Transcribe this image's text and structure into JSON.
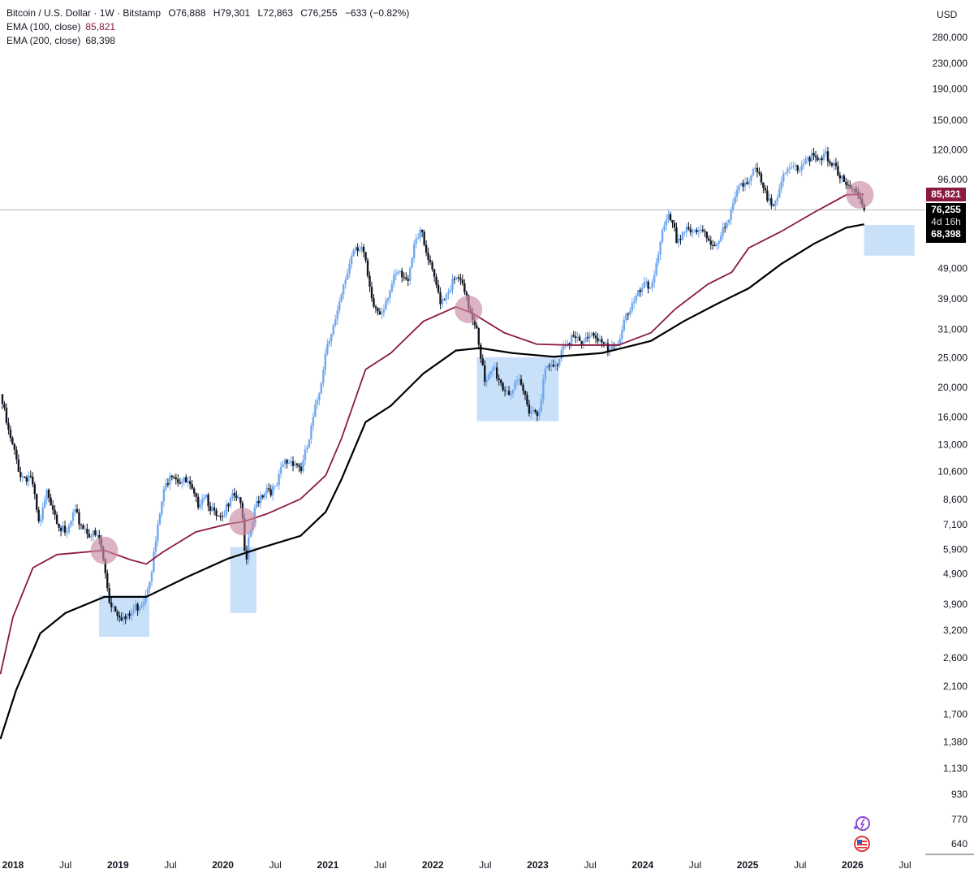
{
  "header": {
    "symbol": "Bitcoin / U.S. Dollar · 1W · Bitstamp",
    "open": "O76,888",
    "high": "H79,301",
    "low": "L72,863",
    "close": "C76,255",
    "change": "−633 (−0.82%)",
    "ema100_label": "EMA (100, close)",
    "ema100_value": "85,821",
    "ema200_label": "EMA (200, close)",
    "ema200_value": "68,398"
  },
  "axis": {
    "currency": "USD",
    "price_tag_ema100": "85,821",
    "price_tag_last": "76,255",
    "countdown": "4d 16h",
    "price_tag_ema200": "68,398"
  },
  "icons": [
    "ai-assistant-icon",
    "us-flag-icon"
  ],
  "colors": {
    "up": "#6fa8f0",
    "down": "#131722",
    "ema100": "#8b1a3e",
    "ema200": "#000000",
    "highlight_circle": "#c98aa3",
    "highlight_box": "#bcd8f7"
  },
  "chart_data": {
    "type": "candlestick",
    "title": "Bitcoin / U.S. Dollar · 1W · Bitstamp",
    "scale": "log",
    "ylim": [
      600,
      300000
    ],
    "xlim": [
      2017.88,
      2026.72
    ],
    "y_ticks": [
      280000,
      230000,
      190000,
      150000,
      120000,
      96000,
      49000,
      39000,
      31000,
      25000,
      20000,
      16000,
      13000,
      10600,
      8600,
      7100,
      5900,
      4900,
      3900,
      3200,
      2600,
      2100,
      1700,
      1380,
      1130,
      930,
      770,
      640
    ],
    "y_tick_labels": [
      "280,000",
      "230,000",
      "190,000",
      "150,000",
      "120,000",
      "96,000",
      "49,000",
      "39,000",
      "31,000",
      "25,000",
      "20,000",
      "16,000",
      "13,000",
      "10,600",
      "8,600",
      "7,100",
      "5,900",
      "4,900",
      "3,900",
      "3,200",
      "2,600",
      "2,100",
      "1,700",
      "1,380",
      "1,130",
      "930",
      "770",
      "640"
    ],
    "x_ticks": [
      {
        "t": 2018.0,
        "label": "2018",
        "bold": true
      },
      {
        "t": 2018.5,
        "label": "Jul"
      },
      {
        "t": 2019.0,
        "label": "2019",
        "bold": true
      },
      {
        "t": 2019.5,
        "label": "Jul"
      },
      {
        "t": 2020.0,
        "label": "2020",
        "bold": true
      },
      {
        "t": 2020.5,
        "label": "Jul"
      },
      {
        "t": 2021.0,
        "label": "2021",
        "bold": true
      },
      {
        "t": 2021.5,
        "label": "Jul"
      },
      {
        "t": 2022.0,
        "label": "2022",
        "bold": true
      },
      {
        "t": 2022.5,
        "label": "Jul"
      },
      {
        "t": 2023.0,
        "label": "2023",
        "bold": true
      },
      {
        "t": 2023.5,
        "label": "Jul"
      },
      {
        "t": 2024.0,
        "label": "2024",
        "bold": true
      },
      {
        "t": 2024.5,
        "label": "Jul"
      },
      {
        "t": 2025.0,
        "label": "2025",
        "bold": true
      },
      {
        "t": 2025.5,
        "label": "Jul"
      },
      {
        "t": 2026.0,
        "label": "2026",
        "bold": true
      },
      {
        "t": 2026.5,
        "label": "Jul"
      }
    ],
    "monthly_closes": [
      [
        2017.88,
        19000
      ],
      [
        2017.96,
        14000
      ],
      [
        2018.08,
        10200
      ],
      [
        2018.17,
        10300
      ],
      [
        2018.25,
        6900
      ],
      [
        2018.33,
        9200
      ],
      [
        2018.42,
        7500
      ],
      [
        2018.5,
        6400
      ],
      [
        2018.58,
        7700
      ],
      [
        2018.67,
        7000
      ],
      [
        2018.75,
        6600
      ],
      [
        2018.83,
        6300
      ],
      [
        2018.92,
        4000
      ],
      [
        2019.0,
        3700
      ],
      [
        2019.08,
        3450
      ],
      [
        2019.17,
        3800
      ],
      [
        2019.25,
        4100
      ],
      [
        2019.33,
        5300
      ],
      [
        2019.42,
        8500
      ],
      [
        2019.5,
        10800
      ],
      [
        2019.58,
        10000
      ],
      [
        2019.67,
        9600
      ],
      [
        2019.75,
        8300
      ],
      [
        2019.83,
        9150
      ],
      [
        2019.92,
        7550
      ],
      [
        2020.0,
        7200
      ],
      [
        2020.08,
        9350
      ],
      [
        2020.17,
        8600
      ],
      [
        2020.22,
        5000
      ],
      [
        2020.25,
        6400
      ],
      [
        2020.33,
        8600
      ],
      [
        2020.42,
        9450
      ],
      [
        2020.5,
        9150
      ],
      [
        2020.58,
        11300
      ],
      [
        2020.67,
        11600
      ],
      [
        2020.75,
        10800
      ],
      [
        2020.83,
        13800
      ],
      [
        2020.92,
        19700
      ],
      [
        2021.0,
        29000
      ],
      [
        2021.08,
        33100
      ],
      [
        2021.17,
        45200
      ],
      [
        2021.25,
        58800
      ],
      [
        2021.33,
        57700
      ],
      [
        2021.42,
        37300
      ],
      [
        2021.5,
        35000
      ],
      [
        2021.58,
        41500
      ],
      [
        2021.67,
        47100
      ],
      [
        2021.75,
        43800
      ],
      [
        2021.83,
        61300
      ],
      [
        2021.88,
        66000
      ],
      [
        2021.92,
        57000
      ],
      [
        2022.0,
        46300
      ],
      [
        2022.08,
        38500
      ],
      [
        2022.17,
        43200
      ],
      [
        2022.25,
        45500
      ],
      [
        2022.33,
        37700
      ],
      [
        2022.42,
        31800
      ],
      [
        2022.5,
        19900
      ],
      [
        2022.58,
        23300
      ],
      [
        2022.67,
        20000
      ],
      [
        2022.75,
        19400
      ],
      [
        2022.83,
        20500
      ],
      [
        2022.92,
        17200
      ],
      [
        2023.0,
        16500
      ],
      [
        2023.08,
        23100
      ],
      [
        2023.17,
        23100
      ],
      [
        2023.25,
        28500
      ],
      [
        2023.33,
        29200
      ],
      [
        2023.42,
        27200
      ],
      [
        2023.5,
        30500
      ],
      [
        2023.58,
        29200
      ],
      [
        2023.67,
        26000
      ],
      [
        2023.75,
        27000
      ],
      [
        2023.83,
        34500
      ],
      [
        2023.92,
        37700
      ],
      [
        2024.0,
        42300
      ],
      [
        2024.08,
        42600
      ],
      [
        2024.17,
        61200
      ],
      [
        2024.25,
        71300
      ],
      [
        2024.33,
        60600
      ],
      [
        2024.42,
        67500
      ],
      [
        2024.5,
        62700
      ],
      [
        2024.58,
        64600
      ],
      [
        2024.67,
        59000
      ],
      [
        2024.75,
        63300
      ],
      [
        2024.83,
        70200
      ],
      [
        2024.92,
        96400
      ],
      [
        2025.0,
        93400
      ],
      [
        2025.08,
        102400
      ],
      [
        2025.17,
        84300
      ],
      [
        2025.25,
        82500
      ],
      [
        2025.33,
        94200
      ],
      [
        2025.42,
        104600
      ],
      [
        2025.5,
        107100
      ],
      [
        2025.58,
        115700
      ],
      [
        2025.67,
        108200
      ],
      [
        2025.75,
        114000
      ],
      [
        2025.83,
        109500
      ],
      [
        2025.92,
        90400
      ],
      [
        2026.0,
        87500
      ],
      [
        2026.06,
        89000
      ],
      [
        2026.11,
        76255
      ]
    ],
    "series": [
      {
        "name": "EMA (100, close)",
        "color": "#8b1a3e",
        "points": [
          [
            2017.88,
            2300
          ],
          [
            2018.0,
            3540
          ],
          [
            2018.19,
            5130
          ],
          [
            2018.42,
            5670
          ],
          [
            2018.87,
            5850
          ],
          [
            2019.12,
            5450
          ],
          [
            2019.27,
            5280
          ],
          [
            2019.43,
            5780
          ],
          [
            2019.74,
            6720
          ],
          [
            2020.05,
            7140
          ],
          [
            2020.2,
            7270
          ],
          [
            2020.43,
            7730
          ],
          [
            2020.74,
            8620
          ],
          [
            2020.98,
            10300
          ],
          [
            2021.13,
            13600
          ],
          [
            2021.36,
            22900
          ],
          [
            2021.6,
            25900
          ],
          [
            2021.91,
            32900
          ],
          [
            2022.22,
            36700
          ],
          [
            2022.37,
            35100
          ],
          [
            2022.68,
            30200
          ],
          [
            2022.99,
            27700
          ],
          [
            2023.3,
            27500
          ],
          [
            2023.77,
            27500
          ],
          [
            2024.08,
            30200
          ],
          [
            2024.31,
            36100
          ],
          [
            2024.62,
            43500
          ],
          [
            2024.85,
            47700
          ],
          [
            2025.01,
            57200
          ],
          [
            2025.32,
            64800
          ],
          [
            2025.63,
            74700
          ],
          [
            2025.94,
            85400
          ],
          [
            2026.11,
            85821
          ]
        ]
      },
      {
        "name": "EMA (200, close)",
        "color": "#000000",
        "points": [
          [
            2017.88,
            1410
          ],
          [
            2018.03,
            2040
          ],
          [
            2018.26,
            3130
          ],
          [
            2018.5,
            3650
          ],
          [
            2018.87,
            4120
          ],
          [
            2019.27,
            4120
          ],
          [
            2019.66,
            4790
          ],
          [
            2020.05,
            5500
          ],
          [
            2020.36,
            5960
          ],
          [
            2020.74,
            6530
          ],
          [
            2020.98,
            7820
          ],
          [
            2021.13,
            10000
          ],
          [
            2021.36,
            15400
          ],
          [
            2021.6,
            17400
          ],
          [
            2021.91,
            22200
          ],
          [
            2022.22,
            26400
          ],
          [
            2022.45,
            26900
          ],
          [
            2022.76,
            25900
          ],
          [
            2023.15,
            25200
          ],
          [
            2023.61,
            25900
          ],
          [
            2023.92,
            27500
          ],
          [
            2024.08,
            28400
          ],
          [
            2024.39,
            32900
          ],
          [
            2024.7,
            37400
          ],
          [
            2025.01,
            42200
          ],
          [
            2025.32,
            50700
          ],
          [
            2025.63,
            59000
          ],
          [
            2025.94,
            66700
          ],
          [
            2026.11,
            68398
          ]
        ]
      }
    ],
    "last_price": 76255,
    "annotations": {
      "circles": [
        [
          2018.87,
          5850
        ],
        [
          2020.19,
          7270
        ],
        [
          2022.34,
          36000
        ],
        [
          2026.07,
          85400
        ]
      ],
      "boxes": [
        [
          2018.82,
          2019.3,
          3050,
          4170
        ],
        [
          2020.07,
          2020.32,
          3650,
          6000
        ],
        [
          2022.42,
          2023.2,
          15500,
          25100
        ],
        [
          2026.11,
          2026.59,
          54000,
          68000
        ]
      ]
    }
  }
}
